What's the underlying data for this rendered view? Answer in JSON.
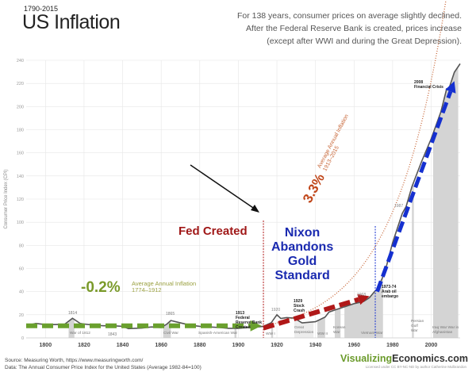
{
  "header": {
    "years": "1790-2015",
    "title": "US Inflation",
    "description": [
      "For 138 years, consumer prices on average slightly declined.",
      "After the Federal Reserve Bank is created, prices increase",
      "(except after WWI and during the Great Depression)."
    ]
  },
  "footer": {
    "source": "Source: Measuring Worth, https://www.measuringworth.com/",
    "data_note": "Data: The Annual Consumer Price Index for the United States (Average 1982-84=100)",
    "brand_part1": "Visualizing",
    "brand_part2": "Economics.com",
    "license": "Licensed under CC BY-NC-ND by author Catherine Mulbrandon"
  },
  "chart_data": {
    "type": "line",
    "title": "US Inflation",
    "ylabel": "Consumer Price Index (CPI)",
    "xlabel": "",
    "xlim": [
      1790,
      2015
    ],
    "ylim": [
      0,
      240
    ],
    "grid": true,
    "x_ticks": [
      1800,
      1820,
      1840,
      1860,
      1880,
      1900,
      1920,
      1940,
      1960,
      1980,
      2000
    ],
    "y_ticks": [
      0,
      20,
      40,
      60,
      80,
      100,
      120,
      140,
      160,
      180,
      200,
      220,
      240
    ],
    "series": [
      {
        "x": [
          1790,
          1795,
          1800,
          1805,
          1810,
          1814,
          1818,
          1820,
          1825,
          1830,
          1835,
          1840,
          1843,
          1850,
          1855,
          1860,
          1863,
          1865,
          1870,
          1875,
          1880,
          1885,
          1890,
          1895,
          1900,
          1905,
          1910,
          1913,
          1917,
          1920,
          1922,
          1925,
          1929,
          1933,
          1940,
          1945,
          1947,
          1950,
          1955,
          1960,
          1965,
          1968,
          1970,
          1973,
          1974,
          1976,
          1980,
          1985,
          1987,
          1990,
          1995,
          2000,
          2005,
          2008,
          2009,
          2012,
          2015
        ],
        "y": [
          10.5,
          12.5,
          11.5,
          11.5,
          11.8,
          17,
          12.5,
          12,
          11,
          10.5,
          10.5,
          10,
          8,
          8.5,
          9.5,
          9,
          12,
          15,
          13,
          11,
          10,
          9.5,
          9,
          8.3,
          8.3,
          9,
          9.5,
          10,
          13,
          20,
          16.8,
          17.5,
          17.1,
          13,
          14,
          18,
          22.3,
          24.1,
          26.8,
          29.6,
          31.5,
          34.8,
          38.8,
          44.4,
          49.3,
          56.9,
          82.4,
          107.6,
          113.6,
          130.7,
          152.4,
          172.2,
          195.3,
          215.3,
          214.5,
          229.6,
          237
        ]
      }
    ],
    "shaded_periods": [
      {
        "label": "War of 1812",
        "start": 1812,
        "end": 1815
      },
      {
        "label": "Civil War",
        "start": 1861,
        "end": 1865
      },
      {
        "label": "Spanish-American War",
        "start": 1898,
        "end": 1898
      },
      {
        "label": "WW I",
        "start": 1917,
        "end": 1918
      },
      {
        "label": "Great Depression",
        "start": 1929,
        "end": 1939
      },
      {
        "label": "WW II",
        "start": 1941,
        "end": 1945
      },
      {
        "label": "Korean War",
        "start": 1950,
        "end": 1953
      },
      {
        "label": "Vietnam War",
        "start": 1955,
        "end": 1975
      },
      {
        "label": "Persian Gulf War",
        "start": 1990,
        "end": 1991
      },
      {
        "label": "Iraq War War in Afghanistan",
        "start": 2001,
        "end": 2014
      }
    ],
    "point_labels": {
      "p1814": "1814",
      "p1843": "1843",
      "p1865": "1865",
      "p1920": "1920",
      "p1968": "1968",
      "p1987": "1987",
      "fed_year": "1913",
      "fed_text": "Federal Reserve Bank Created",
      "crash_year": "1929",
      "crash_text": "Stock Crash",
      "oil_year": "1973-74",
      "oil_text": "Arab oil embargo",
      "crisis_year": "2008",
      "crisis_text": "Financial Crisis"
    },
    "annotations": {
      "pre_fed_rate": "-0.2%",
      "pre_fed_label": "Average Annual Inflation",
      "pre_fed_years": "1774–1912",
      "post_fed_rate": "3.3%",
      "post_fed_label": "Average Annual Inflation",
      "post_fed_years": "1913–2015",
      "fed_created": "Fed Created",
      "nixon": [
        "Nixon",
        "Abandons",
        "Gold",
        "Standard"
      ]
    },
    "trend_rates": {
      "pre_fed": -0.2,
      "post_fed": 3.3
    },
    "event_lines": {
      "fed": 1913,
      "gold_standard": 1971
    },
    "colors": {
      "line": "#555555",
      "shade": "#d4d4d4",
      "light_shade": "#ececec",
      "green": "#6aa02e",
      "green_text": "#8a9a3a",
      "red": "#b01818",
      "orange_dotted": "#c8683a",
      "blue": "#1530d0",
      "navy_text": "#1a2ab0"
    }
  }
}
